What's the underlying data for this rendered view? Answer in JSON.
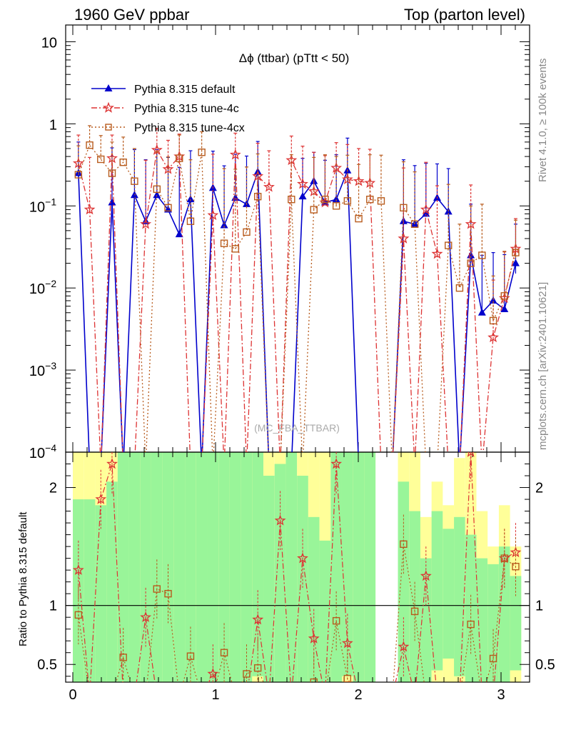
{
  "chart_data": {
    "type": "line",
    "header": {
      "left": "1960 GeV ppbar",
      "right": "Top (parton level)"
    },
    "title": "Δϕ (ttbar) (pTtt < 50)",
    "watermark": "(MC_FBA_TTBAR)",
    "side_label_top": "Rivet 4.1.0, ≥ 100k events",
    "side_label_bottom": "mcplots.cern.ch [arXiv:2401.10621]",
    "ratio_ylabel": "Ratio to Pythia 8.315 default",
    "xlim": [
      -0.05,
      3.2
    ],
    "ylim_main": [
      0.0001,
      16
    ],
    "ylim_ratio": [
      0.35,
      2.3
    ],
    "x_ticks": [
      {
        "value": 0,
        "label": "0"
      },
      {
        "value": 1,
        "label": "1"
      },
      {
        "value": 2,
        "label": "2"
      },
      {
        "value": 3,
        "label": "3"
      }
    ],
    "y_ticks_main": [
      {
        "value": 10,
        "base": "10",
        "exp": ""
      },
      {
        "value": 1,
        "base": "1",
        "exp": ""
      },
      {
        "value": 0.1,
        "base": "10",
        "exp": "−1"
      },
      {
        "value": 0.01,
        "base": "10",
        "exp": "−2"
      },
      {
        "value": 0.001,
        "base": "10",
        "exp": "−3"
      },
      {
        "value": 0.0001,
        "base": "10",
        "exp": "−4"
      }
    ],
    "y_ticks_ratio": [
      {
        "value": 2,
        "label": "2"
      },
      {
        "value": 1,
        "label": "1"
      },
      {
        "value": 0.5,
        "label": "0.5"
      }
    ],
    "x": [
      0.0393,
      0.1178,
      0.1963,
      0.2749,
      0.3534,
      0.432,
      0.5105,
      0.589,
      0.6676,
      0.7461,
      0.8247,
      0.9032,
      0.9817,
      1.0603,
      1.1388,
      1.2174,
      1.2959,
      1.3744,
      1.453,
      1.5315,
      1.6101,
      1.6886,
      1.7671,
      1.8457,
      1.9242,
      2.0028,
      2.0813,
      2.1598,
      2.2384,
      2.3169,
      2.3955,
      2.474,
      2.5525,
      2.6311,
      2.7096,
      2.7882,
      2.8667,
      2.9452,
      3.0238,
      3.1023
    ],
    "series": [
      {
        "name": "Pythia 8.315 default",
        "color": "#0000cc",
        "marker": "triangle",
        "dash": "",
        "values": [
          0.25,
          0,
          0,
          0.11,
          0,
          0.135,
          0.065,
          0.135,
          0.09,
          0.045,
          0.12,
          0,
          0.165,
          0.058,
          0.125,
          0.105,
          0.26,
          0,
          0,
          0,
          0.13,
          0.2,
          0.11,
          0.12,
          0.27,
          0,
          0,
          0,
          0,
          0.065,
          0.06,
          0.08,
          0.125,
          0.085,
          0,
          0.025,
          0.005,
          0.007,
          0.0055,
          0.02
        ],
        "err_up": [
          0.35,
          0,
          0,
          0.4,
          0,
          0.35,
          0.3,
          0.35,
          0.3,
          0.25,
          0.35,
          0,
          0.3,
          0.25,
          0.3,
          0.3,
          0.35,
          0,
          0,
          0,
          0.25,
          0.25,
          0.25,
          0.3,
          0.4,
          0,
          0,
          0,
          0,
          0.3,
          0.25,
          0.25,
          0.2,
          0.2,
          0,
          0.08,
          0.02,
          0.02,
          0.02,
          0.04
        ],
        "err_down": [
          0.015,
          0,
          0,
          0.0001,
          0,
          0.0001,
          0.0001,
          0.0001,
          0.0001,
          0.0001,
          0.0001,
          0,
          0.0001,
          0.0001,
          0.0001,
          0.0001,
          0.0001,
          0,
          0,
          0,
          0.0001,
          0.0001,
          0.0001,
          0.0001,
          0.0001,
          0,
          0,
          0,
          0,
          0.0001,
          0.0001,
          0.0001,
          0.0001,
          0.0001,
          0,
          0.0001,
          0.0001,
          0.0001,
          0.0001,
          0.005
        ]
      },
      {
        "name": "Pythia 8.315 tune-4c",
        "color": "#dd3333",
        "marker": "star",
        "dash": "8,3,2,3",
        "values": [
          0.33,
          0.09,
          0,
          0.38,
          0,
          0,
          0.06,
          0.48,
          0.28,
          0.4,
          0,
          0,
          0.077,
          0,
          0.42,
          0,
          0.23,
          0.17,
          0,
          0.36,
          0.185,
          0.15,
          0.11,
          0.29,
          0.21,
          0.2,
          0.19,
          0,
          0,
          0.04,
          0,
          0.09,
          0.026,
          0,
          0,
          0.06,
          0,
          0.0025,
          0.0075,
          0.03
        ],
        "err_up": [
          0.4,
          0.3,
          0,
          0.35,
          0,
          0,
          0.3,
          0.4,
          0.35,
          0.35,
          0,
          0,
          0.35,
          0,
          0.35,
          0,
          0.35,
          0.3,
          0,
          0.35,
          0.35,
          0.3,
          0.3,
          0.3,
          0.35,
          0.3,
          0.3,
          0,
          0,
          0.25,
          0,
          0.25,
          0.15,
          0,
          0,
          0.12,
          0,
          0.01,
          0.02,
          0.04
        ],
        "err_down": [
          0.0001,
          0.0001,
          0,
          0.0001,
          0,
          0,
          0.0001,
          0.0001,
          0.0001,
          0.0001,
          0,
          0,
          0.0001,
          0,
          0.0001,
          0,
          0.0001,
          0.0001,
          0,
          0.0001,
          0.0001,
          0.0001,
          0.0001,
          0.0001,
          0.0001,
          0.0001,
          0.0001,
          0,
          0,
          0.0001,
          0,
          0.0001,
          0.0001,
          0,
          0,
          0.0001,
          0,
          0.0001,
          0.0001,
          0.005
        ]
      },
      {
        "name": "Pythia 8.315 tune-4cx",
        "color": "#b85c1e",
        "marker": "square",
        "dash": "2,3",
        "values": [
          0.24,
          0.55,
          0.37,
          0.25,
          0.34,
          0.2,
          0,
          0.16,
          0.095,
          0.38,
          0.065,
          0.45,
          0,
          0.035,
          0.03,
          0.048,
          0.13,
          0,
          0,
          0.12,
          0,
          0.09,
          0.12,
          0.1,
          0.115,
          0.07,
          0.12,
          0.115,
          0,
          0.095,
          0.06,
          0,
          0,
          0.033,
          0.01,
          0.02,
          0.025,
          0.004,
          0.008,
          0.027
        ],
        "err_up": [
          0.3,
          0.4,
          0.35,
          0.35,
          0.35,
          0.3,
          0,
          0.3,
          0.3,
          0.35,
          0.3,
          0.35,
          0,
          0.25,
          0.25,
          0.25,
          0.3,
          0,
          0,
          0.3,
          0,
          0.3,
          0.3,
          0.3,
          0.3,
          0.25,
          0.3,
          0.3,
          0,
          0.25,
          0.2,
          0,
          0,
          0.15,
          0.05,
          0.08,
          0.08,
          0.01,
          0.02,
          0.04
        ],
        "err_down": [
          0.0001,
          0.0001,
          0.0001,
          0.0001,
          0.0001,
          0.0001,
          0,
          0.0001,
          0.0001,
          0.0001,
          0.0001,
          0.0001,
          0,
          0.0001,
          0.0001,
          0.0001,
          0.0001,
          0,
          0,
          0.0001,
          0,
          0.0001,
          0.0001,
          0.0001,
          0.0001,
          0.0001,
          0.0001,
          0.0001,
          0,
          0.0001,
          0.0001,
          0,
          0,
          0.0001,
          0.0001,
          0.0001,
          0.0001,
          0.0001,
          0.0001,
          0.005
        ]
      }
    ],
    "ratio_bands": {
      "green_lo": [
        0.35,
        0.35,
        0.35,
        0.35,
        0.35,
        0.35,
        0.35,
        0.35,
        0.35,
        0.35,
        0.35,
        0.35,
        0.35,
        0.35,
        0.35,
        0.35,
        0.4,
        0.35,
        0.35,
        0.35,
        0.35,
        0.35,
        0.35,
        0.35,
        0.4,
        0.35,
        0.35,
        null,
        null,
        0.35,
        0.35,
        0.35,
        0.45,
        0.55,
        0.4,
        0.35,
        0.35,
        0.35,
        0.35,
        0.45
      ],
      "green_hi": [
        1.9,
        1.9,
        1.85,
        2.05,
        2.3,
        2.3,
        2.3,
        2.3,
        2.3,
        2.3,
        2.3,
        2.3,
        2.3,
        2.3,
        2.3,
        2.3,
        2.3,
        2.1,
        2.2,
        2.3,
        2.1,
        1.75,
        1.55,
        2.3,
        2.3,
        2.3,
        2.3,
        null,
        null,
        2.05,
        1.8,
        1.4,
        1.8,
        1.65,
        1.75,
        1.6,
        1.4,
        1.35,
        1.5,
        1.25
      ],
      "yellow_lo": [
        0.35,
        0.35,
        0.35,
        0.35,
        0.35,
        0.35,
        0.35,
        0.35,
        0.35,
        0.35,
        0.35,
        0.35,
        0.35,
        0.35,
        0.35,
        0.35,
        0.35,
        0.35,
        0.35,
        0.35,
        0.35,
        0.35,
        0.35,
        0.35,
        0.35,
        0.35,
        0.35,
        null,
        null,
        0.35,
        0.35,
        0.35,
        0.35,
        0.35,
        0.35,
        0.35,
        0.35,
        0.35,
        0.35,
        0.35
      ],
      "yellow_hi": [
        2.3,
        2.3,
        2.3,
        2.3,
        2.3,
        2.3,
        2.3,
        2.3,
        2.3,
        2.3,
        2.3,
        2.3,
        2.3,
        2.3,
        2.3,
        2.3,
        2.3,
        2.3,
        2.3,
        2.3,
        2.3,
        2.3,
        2.3,
        2.3,
        2.3,
        2.3,
        2.3,
        null,
        null,
        2.3,
        2.3,
        1.75,
        2.05,
        1.85,
        2.25,
        2.3,
        1.8,
        1.5,
        1.85,
        1.5
      ]
    },
    "ratio_series": [
      {
        "name": "Pythia 8.315 tune-4c",
        "values": [
          1.3,
          0,
          1.9,
          2.2,
          0,
          0,
          0.9,
          0,
          0,
          0,
          0,
          0,
          0.42,
          0,
          0,
          0,
          0.88,
          0,
          1.72,
          0,
          1.4,
          0.72,
          0,
          2.2,
          0.68,
          0,
          0,
          0,
          0,
          0.65,
          0,
          1.25,
          0,
          0,
          0,
          2.3,
          0,
          0,
          1.4,
          1.45
        ]
      },
      {
        "name": "Pythia 8.315 tune-4cx",
        "values": [
          0.92,
          0,
          0,
          0,
          0.56,
          0,
          0,
          1.14,
          1.1,
          0,
          0.57,
          0,
          0,
          0.6,
          0,
          0.42,
          0.47,
          0,
          0,
          0,
          0,
          0.35,
          0,
          0.87,
          0.38,
          0,
          0,
          0,
          0,
          1.52,
          0.95,
          0,
          0,
          0,
          0,
          0.84,
          0,
          0.55,
          1.4,
          1.33
        ]
      }
    ]
  }
}
